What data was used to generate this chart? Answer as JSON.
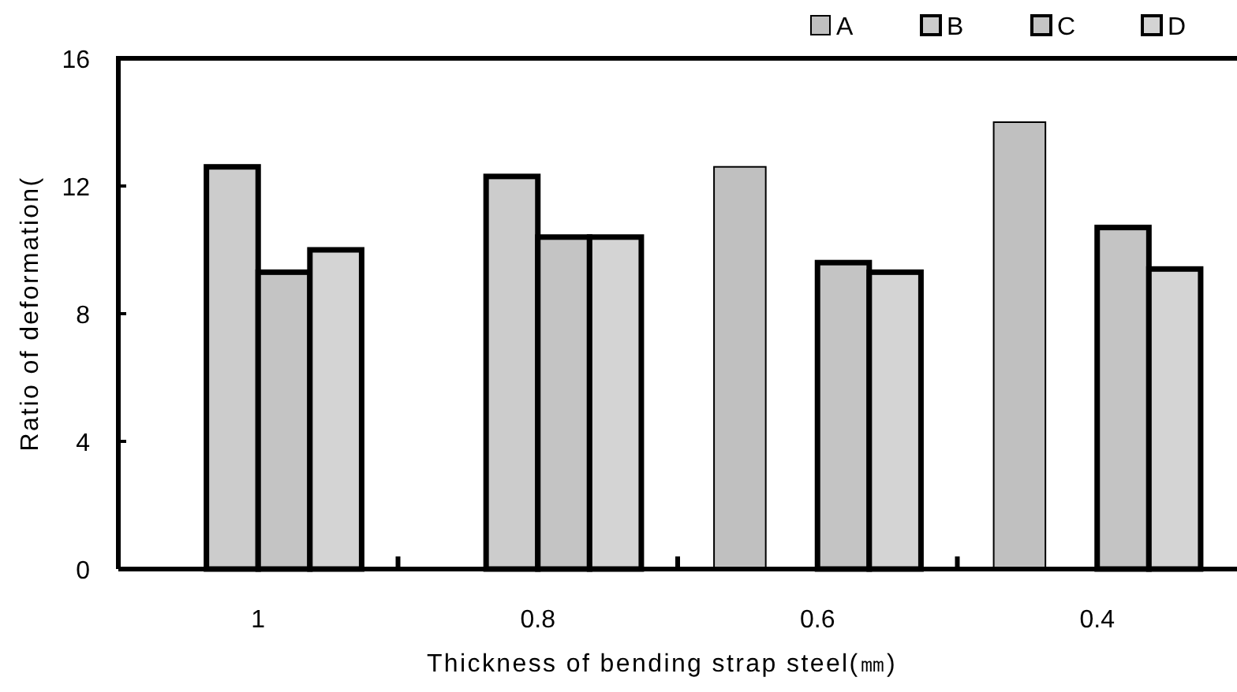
{
  "chart_data": {
    "type": "bar",
    "xlabel": "Thickness of bending strap steel(㎜)",
    "ylabel": "Ratio of deformation(",
    "categories": [
      "1",
      "0.8",
      "0.6",
      "0.4"
    ],
    "series": [
      {
        "name": "A",
        "color": "#c0c0c0",
        "values": [
          null,
          null,
          12.6,
          14.0
        ]
      },
      {
        "name": "B",
        "color": "#cccccc",
        "values": [
          12.6,
          12.3,
          null,
          null
        ]
      },
      {
        "name": "C",
        "color": "#c4c4c4",
        "values": [
          9.3,
          10.4,
          9.6,
          10.7
        ]
      },
      {
        "name": "D",
        "color": "#d4d4d4",
        "values": [
          10.0,
          10.4,
          9.3,
          9.4
        ]
      }
    ],
    "ylim": [
      0,
      16
    ],
    "yticks": [
      0,
      4,
      8,
      12,
      16
    ],
    "legend": "top right"
  }
}
